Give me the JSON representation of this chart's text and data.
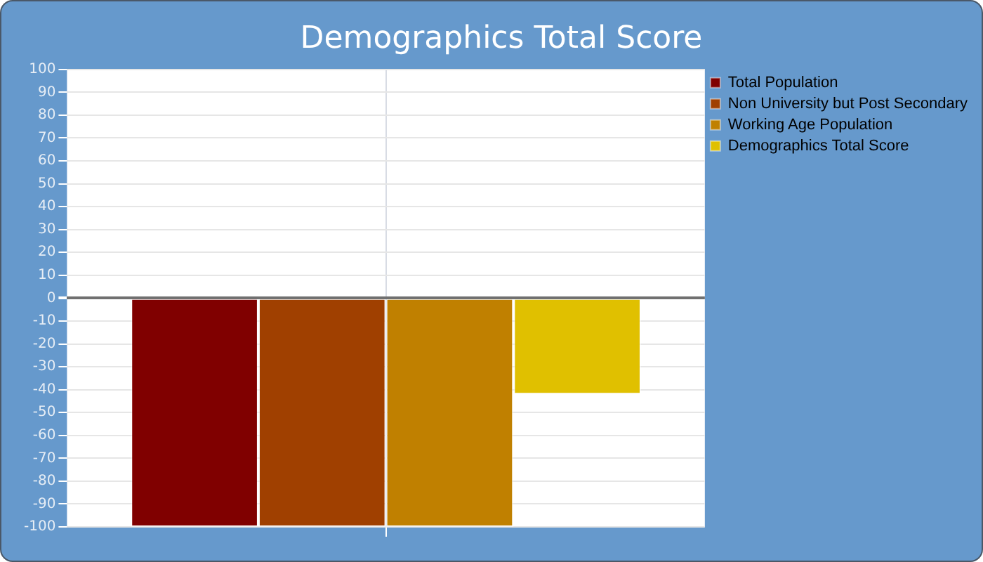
{
  "chart_data": {
    "type": "bar",
    "title": "Demographics Total Score",
    "categories": [
      null
    ],
    "series": [
      {
        "name": "Total Population",
        "color": "#800000",
        "values": [
          -100
        ]
      },
      {
        "name": "Non University but Post Secondary",
        "color": "#a04000",
        "values": [
          -100
        ]
      },
      {
        "name": "Working Age Population",
        "color": "#c08000",
        "values": [
          -100
        ]
      },
      {
        "name": "Demographics Total Score",
        "color": "#e0c000",
        "values": [
          -42
        ]
      }
    ],
    "ylim": [
      -100,
      100
    ],
    "yticks": [
      -100,
      -90,
      -80,
      -70,
      -60,
      -50,
      -40,
      -30,
      -20,
      -10,
      0,
      10,
      20,
      30,
      40,
      50,
      60,
      70,
      80,
      90,
      100
    ],
    "grid": true,
    "legend": "top right",
    "tick_labels": "y"
  }
}
